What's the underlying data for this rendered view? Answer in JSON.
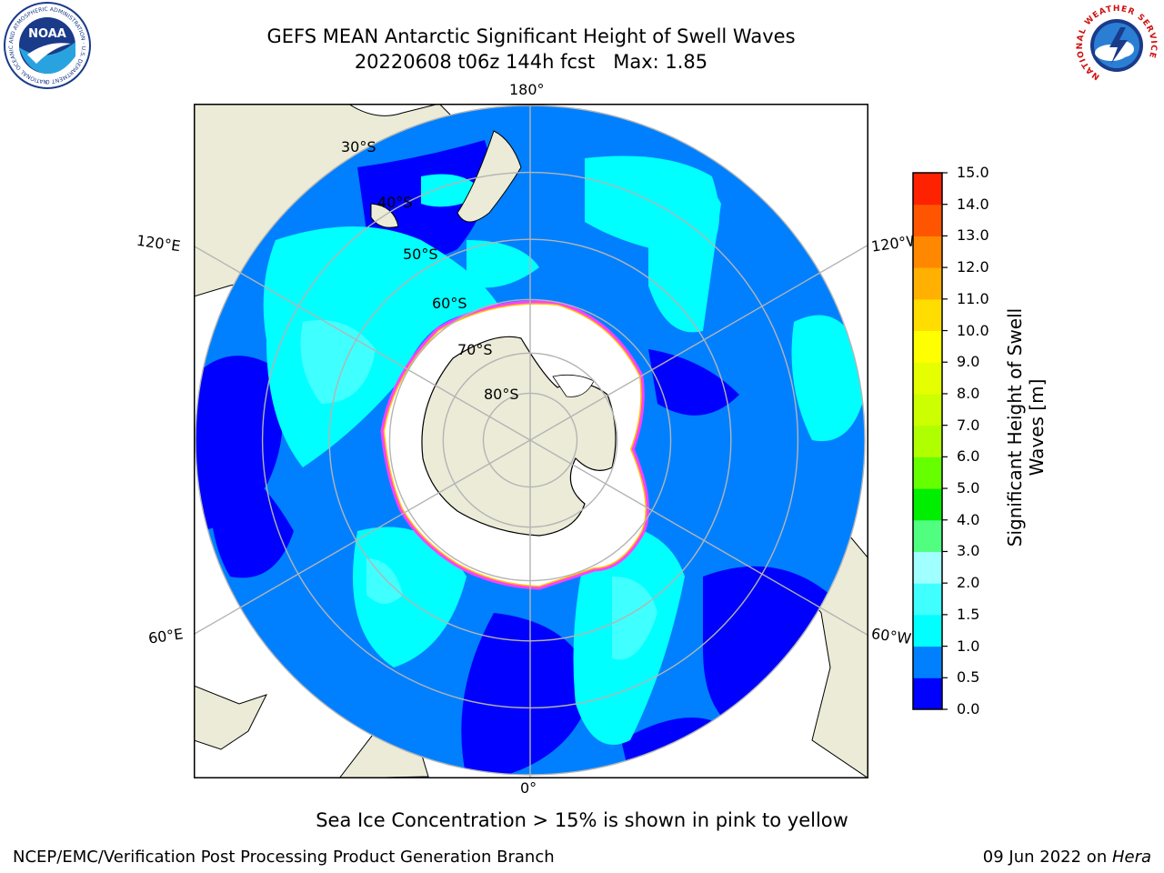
{
  "header": {
    "title_line1": "GEFS MEAN Antarctic Significant Height of Swell Waves",
    "title_line2": "20220608 t06z 144h fcst   Max: 1.85"
  },
  "logos": {
    "noaa_text": "NOAA",
    "noaa_ring_text": "NATIONAL OCEANIC AND ATMOSPHERIC ADMINISTRATION · U.S. DEPARTMENT OF COMMERCE",
    "nws_ring_text": "NATIONAL WEATHER SERVICE"
  },
  "map": {
    "projection": "south polar stereographic",
    "lon_labels": {
      "top": "180°",
      "bottom": "0°",
      "upper_left": "120°E",
      "upper_right": "120°W",
      "lower_left": "60°E",
      "lower_right": "60°W"
    },
    "lat_labels": [
      "30°S",
      "40°S",
      "50°S",
      "60°S",
      "70°S",
      "80°S"
    ],
    "colors": {
      "land": "#ebebd8",
      "ice_shelf": "#ffffff",
      "sea_ice_edge": [
        "#ff40ff",
        "#ffc000"
      ],
      "gridline": "#b4b4b4"
    }
  },
  "colorbar": {
    "levels": [
      "0.0",
      "0.5",
      "1.0",
      "1.5",
      "2.0",
      "3.0",
      "4.0",
      "5.0",
      "6.0",
      "7.0",
      "8.0",
      "9.0",
      "10.0",
      "11.0",
      "12.0",
      "13.0",
      "14.0",
      "15.0"
    ],
    "colors": [
      "#0000ff",
      "#0080ff",
      "#00ffff",
      "#40ffff",
      "#a0ffff",
      "#50ff80",
      "#00ee00",
      "#66ff00",
      "#b0ff00",
      "#ccff00",
      "#e6ff00",
      "#ffff00",
      "#ffdd00",
      "#ffb000",
      "#ff8800",
      "#ff5500",
      "#ff2200"
    ],
    "label": "Significant Height of Swell Waves [m]",
    "label_line1": "Significant Height of Swell",
    "label_line2": "Waves [m]"
  },
  "footer": {
    "subtitle": "Sea Ice Concentration > 15% is shown in pink to yellow",
    "left": "NCEP/EMC/Verification Post Processing Product Generation Branch",
    "right_date": "09 Jun 2022 on ",
    "right_host": "Hera"
  }
}
